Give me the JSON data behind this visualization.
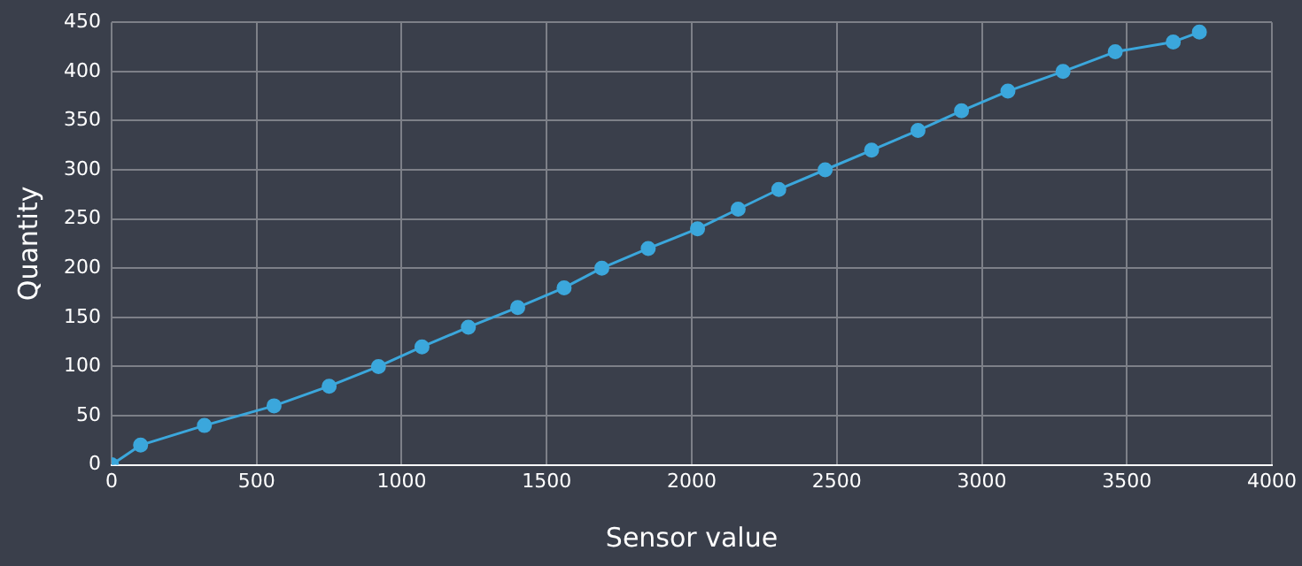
{
  "chart_data": {
    "type": "line",
    "xlabel": "Sensor value",
    "ylabel": "Quantity",
    "x": [
      0,
      100,
      320,
      560,
      750,
      920,
      1070,
      1230,
      1400,
      1560,
      1690,
      1850,
      2020,
      2160,
      2300,
      2460,
      2620,
      2780,
      2930,
      3090,
      3280,
      3460,
      3660,
      3750
    ],
    "series": [
      {
        "color": "#3ba7dc",
        "values": [
          0,
          20,
          40,
          60,
          80,
          100,
          120,
          140,
          160,
          180,
          200,
          220,
          240,
          260,
          280,
          300,
          320,
          340,
          360,
          380,
          400,
          420,
          430,
          440
        ]
      }
    ],
    "xlim": [
      0,
      4000
    ],
    "xticks": [
      0,
      500,
      1000,
      1500,
      2000,
      2500,
      3000,
      3500,
      4000
    ],
    "ylim": [
      0,
      450
    ],
    "yticks": [
      0,
      50,
      100,
      150,
      200,
      250,
      300,
      350,
      400,
      450
    ],
    "grid": true,
    "legend": false,
    "marker": "circle",
    "line_style": "solid"
  }
}
